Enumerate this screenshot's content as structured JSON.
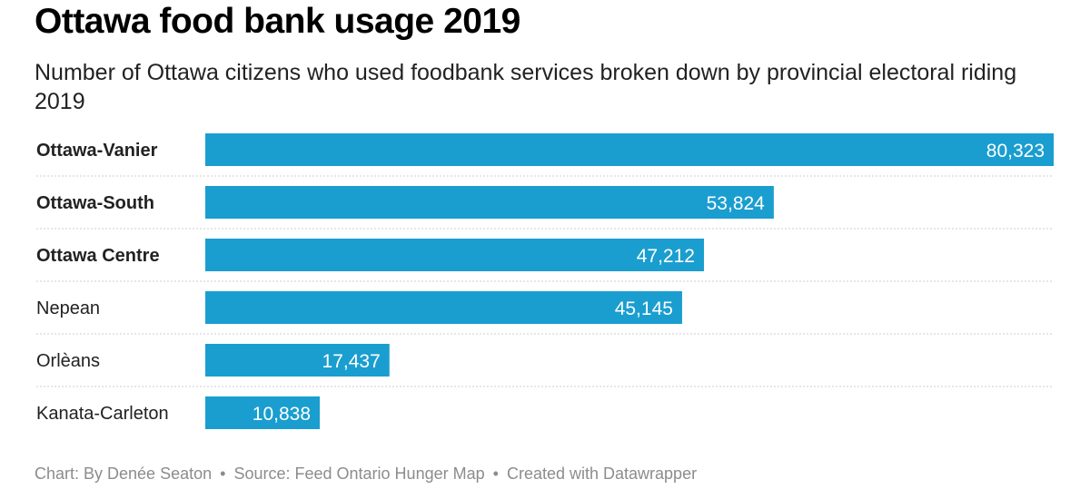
{
  "header": {
    "title": "Ottawa food bank usage 2019",
    "subtitle": "Number of Ottawa citizens who used foodbank services broken down by provincial electoral riding 2019"
  },
  "footer": {
    "chart_by": "Chart: By Denée Seaton",
    "source": "Source: Feed Ontario Hunger Map",
    "created_with": "Created with Datawrapper",
    "separator": "•"
  },
  "colors": {
    "bar": "#1a9ecf",
    "bar_label": "#ffffff",
    "category_label": "#222222",
    "divider": "#cccccc"
  },
  "chart_data": {
    "type": "bar",
    "orientation": "horizontal",
    "title": "Ottawa food bank usage 2019",
    "categories": [
      "Ottawa-Vanier",
      "Ottawa-South",
      "Ottawa Centre",
      "Nepean",
      "Orlèans",
      "Kanata-Carleton"
    ],
    "bold_categories": [
      "Ottawa-Vanier",
      "Ottawa-South",
      "Ottawa Centre"
    ],
    "values": [
      80323,
      53824,
      47212,
      45145,
      17437,
      10838
    ],
    "value_labels": [
      "80,323",
      "53,824",
      "47,212",
      "45,145",
      "17,437",
      "10,838"
    ],
    "xlim": [
      0,
      80323
    ],
    "grid": false,
    "legend": "none"
  }
}
